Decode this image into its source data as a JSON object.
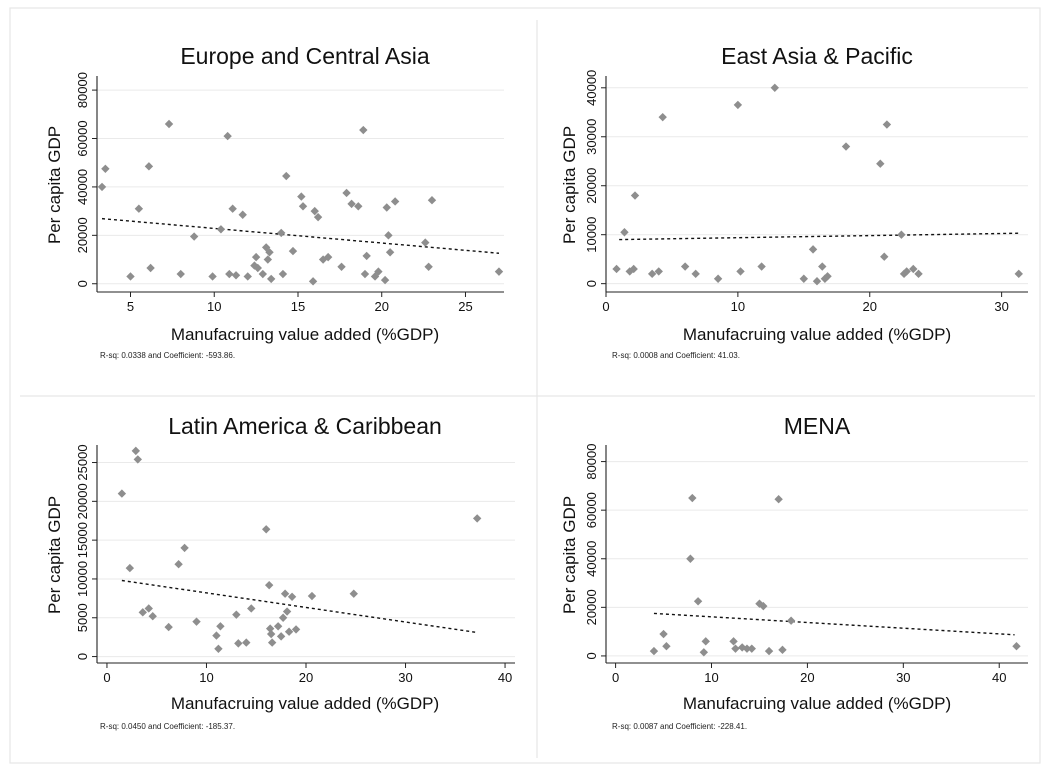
{
  "chart_data": [
    {
      "type": "scatter",
      "title": "Europe and Central Asia",
      "xlabel": "Manufacruing value added (%GDP)",
      "ylabel": "Per capita GDP",
      "xlim": [
        3,
        27.3
      ],
      "ylim": [
        -3000,
        85000
      ],
      "xticks": [
        5,
        10,
        15,
        20,
        25
      ],
      "yticks": [
        0,
        20000,
        40000,
        60000,
        80000
      ],
      "grid": true,
      "note": "R-sq: 0.0338 and Coefficient: -593.86.",
      "fit": {
        "x": [
          3.3,
          27
        ],
        "y": [
          26900,
          12600
        ]
      },
      "x": [
        3.3,
        3.5,
        5,
        5.5,
        6.1,
        6.2,
        7.3,
        8,
        8.8,
        9.9,
        10.4,
        10.8,
        10.9,
        11.1,
        11.3,
        11.7,
        12,
        12.4,
        12.5,
        12.6,
        12.9,
        13.1,
        13.2,
        13.3,
        13.4,
        14,
        14.1,
        14.3,
        14.7,
        15.2,
        15.3,
        15.9,
        16,
        16.2,
        16.5,
        16.8,
        17.6,
        17.9,
        18.2,
        18.6,
        18.9,
        19,
        19.1,
        19.6,
        19.8,
        20.2,
        20.3,
        20.4,
        20.5,
        20.8,
        22.6,
        22.8,
        23,
        27
      ],
      "y": [
        40000,
        47500,
        3000,
        31000,
        48500,
        6500,
        66000,
        4000,
        19500,
        3000,
        22500,
        61000,
        4000,
        31000,
        3500,
        28500,
        3000,
        7500,
        11000,
        6500,
        4000,
        15000,
        10000,
        13000,
        2000,
        21000,
        4000,
        44500,
        13500,
        36000,
        32000,
        1000,
        30000,
        27500,
        10000,
        11000,
        7000,
        37500,
        33000,
        32000,
        63500,
        4000,
        11500,
        3000,
        5000,
        1500,
        31500,
        20000,
        13000,
        34000,
        17000,
        7000,
        34500,
        5000
      ]
    },
    {
      "type": "scatter",
      "title": "East Asia & Pacific",
      "xlabel": "Manufacruing value added (%GDP)",
      "ylabel": "Per capita GDP",
      "xlim": [
        0,
        32
      ],
      "ylim": [
        -1500,
        42000
      ],
      "xticks": [
        0,
        10,
        20,
        30
      ],
      "yticks": [
        0,
        10000,
        20000,
        30000,
        40000
      ],
      "grid": true,
      "note": "R-sq: 0.0008 and Coefficient:  41.03.",
      "fit": {
        "x": [
          1,
          31.3
        ],
        "y": [
          9000,
          10300
        ]
      },
      "x": [
        0.8,
        1.4,
        1.8,
        2.1,
        2.2,
        3.5,
        4,
        4.3,
        6,
        6.8,
        8.5,
        10,
        10.2,
        12.8,
        11.8,
        15,
        15.7,
        16,
        16.4,
        16.6,
        16.8,
        18.2,
        20.8,
        21.1,
        21.3,
        22.4,
        22.6,
        22.8,
        23.3,
        23.7,
        31.3
      ],
      "y": [
        3000,
        10500,
        2500,
        3000,
        18000,
        2000,
        2500,
        34000,
        3500,
        2000,
        1000,
        36500,
        2500,
        40000,
        3500,
        1000,
        7000,
        500,
        3500,
        1000,
        1500,
        28000,
        24500,
        5500,
        32500,
        10000,
        2000,
        2500,
        3000,
        2000,
        2000
      ]
    },
    {
      "type": "scatter",
      "title": "Latin America & Caribbean",
      "xlabel": "Manufacruing value added (%GDP)",
      "ylabel": "Per capita GDP",
      "xlim": [
        -1,
        41
      ],
      "ylim": [
        -700,
        27000
      ],
      "xticks": [
        0,
        10,
        20,
        30,
        40
      ],
      "yticks": [
        0,
        5000,
        10000,
        15000,
        20000,
        25000
      ],
      "grid": true,
      "note": "R-sq: 0.0450 and Coefficient: -185.37.",
      "fit": {
        "x": [
          1.5,
          37.2
        ],
        "y": [
          9800,
          3100
        ]
      },
      "x": [
        1.5,
        2.3,
        2.9,
        3.1,
        3.6,
        4.2,
        4.6,
        6.2,
        7.2,
        7.8,
        9,
        11,
        11.2,
        11.4,
        13,
        13.2,
        14,
        14.5,
        16,
        16.3,
        16.4,
        16.5,
        16.6,
        17.2,
        17.5,
        17.7,
        17.9,
        18.1,
        18.3,
        18.6,
        19,
        20.6,
        24.8,
        37.2
      ],
      "y": [
        21000,
        11400,
        26500,
        25400,
        5700,
        6200,
        5200,
        3800,
        11900,
        14000,
        4500,
        2700,
        1000,
        3900,
        5400,
        1700,
        1800,
        6200,
        16400,
        9200,
        3600,
        2900,
        1800,
        3900,
        2600,
        5000,
        8100,
        5800,
        3200,
        7700,
        3500,
        7800,
        8100,
        17800
      ]
    },
    {
      "type": "scatter",
      "title": "MENA",
      "xlabel": "Manufacruing value added (%GDP)",
      "ylabel": "Per capita GDP",
      "xlim": [
        -1,
        43
      ],
      "ylim": [
        -2500,
        86000
      ],
      "xticks": [
        0,
        10,
        20,
        30,
        40
      ],
      "yticks": [
        0,
        20000,
        40000,
        60000,
        80000
      ],
      "grid": true,
      "note": "R-sq: 0.0087 and Coefficient: -228.41.",
      "fit": {
        "x": [
          4,
          41.6
        ],
        "y": [
          17500,
          8700
        ]
      },
      "x": [
        4,
        5,
        5.3,
        7.8,
        8,
        8.6,
        9.2,
        9.4,
        12.3,
        12.5,
        13.2,
        13.7,
        14.2,
        15,
        15.4,
        16,
        17,
        17.4,
        18.3,
        41.8
      ],
      "y": [
        2000,
        9000,
        4000,
        40000,
        65000,
        22500,
        1500,
        6000,
        6000,
        3000,
        3500,
        3000,
        3000,
        21500,
        20500,
        2000,
        64500,
        2500,
        14500,
        4000
      ]
    }
  ]
}
